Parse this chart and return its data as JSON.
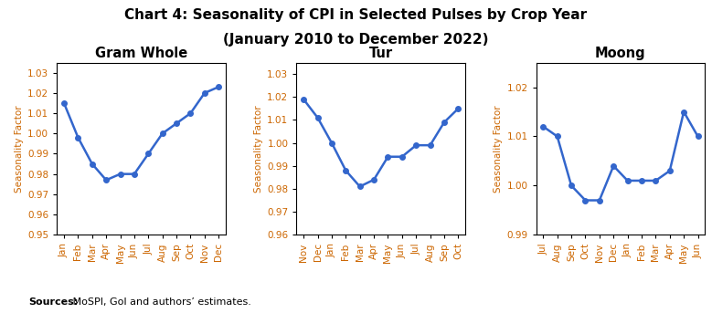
{
  "title_line1": "Chart 4: Seasonality of CPI in Selected Pulses by Crop Year",
  "title_line2": "(January 2010 to December 2022)",
  "source_bold": "Sources:",
  "source_rest": " MoSPI, GoI and authors’ estimates.",
  "panels": [
    {
      "title": "Gram Whole",
      "months": [
        "Jan",
        "Feb",
        "Mar",
        "Apr",
        "May",
        "Jun",
        "Jul",
        "Aug",
        "Sep",
        "Oct",
        "Nov",
        "Dec"
      ],
      "values": [
        1.015,
        0.998,
        0.985,
        0.977,
        0.98,
        0.98,
        0.99,
        1.0,
        1.005,
        1.01,
        1.02,
        1.023
      ],
      "ylim": [
        0.95,
        1.035
      ],
      "yticks": [
        0.95,
        0.96,
        0.97,
        0.98,
        0.99,
        1.0,
        1.01,
        1.02,
        1.03
      ]
    },
    {
      "title": "Tur",
      "months": [
        "Nov",
        "Dec",
        "Jan",
        "Feb",
        "Mar",
        "Apr",
        "May",
        "Jun",
        "Jul",
        "Aug",
        "Sep",
        "Oct"
      ],
      "values": [
        1.019,
        1.011,
        1.0,
        0.988,
        0.981,
        0.984,
        0.994,
        0.994,
        0.999,
        0.999,
        1.009,
        1.015
      ],
      "ylim": [
        0.96,
        1.035
      ],
      "yticks": [
        0.96,
        0.97,
        0.98,
        0.99,
        1.0,
        1.01,
        1.02,
        1.03
      ]
    },
    {
      "title": "Moong",
      "months": [
        "Jul",
        "Aug",
        "Sep",
        "Oct",
        "Nov",
        "Dec",
        "Jan",
        "Feb",
        "Mar",
        "Apr",
        "May",
        "Jun"
      ],
      "values": [
        1.012,
        1.01,
        1.0,
        0.997,
        0.997,
        1.004,
        1.001,
        1.001,
        1.001,
        1.003,
        1.015,
        1.01
      ],
      "ylim": [
        0.99,
        1.025
      ],
      "yticks": [
        0.99,
        1.0,
        1.01,
        1.02
      ]
    }
  ],
  "line_color": "#3366CC",
  "marker": "o",
  "markersize": 4,
  "linewidth": 1.8,
  "title_fontsize": 11,
  "panel_title_fontsize": 10.5,
  "axis_label_fontsize": 7.5,
  "tick_fontsize": 7.5,
  "tick_label_color": "#CC6600",
  "ylabel_color": "#CC6600"
}
